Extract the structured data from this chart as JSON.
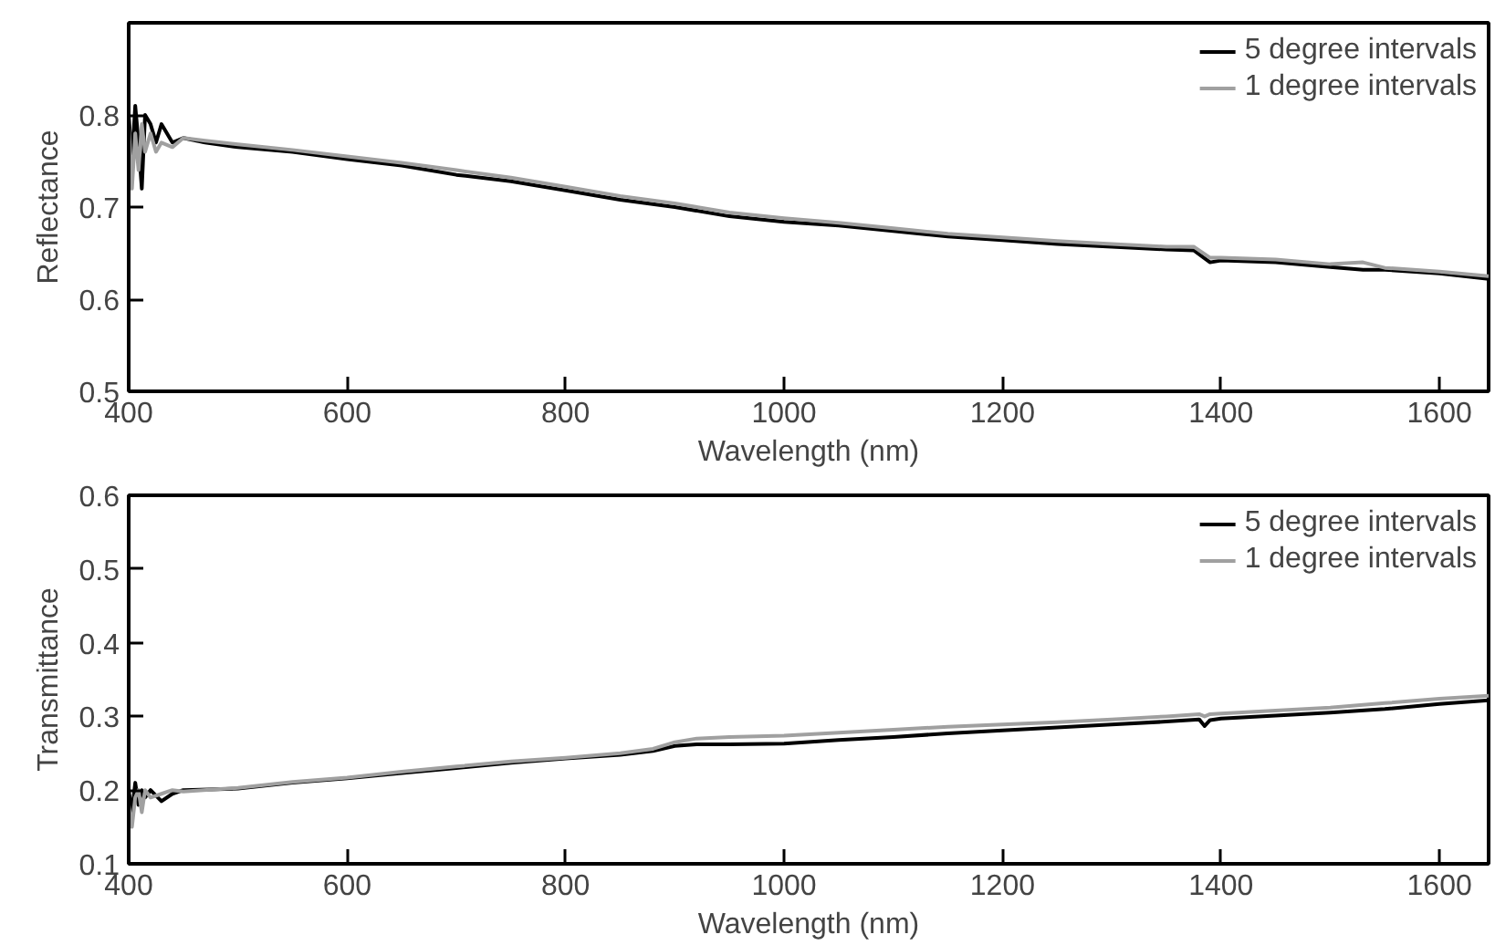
{
  "chart_data": [
    {
      "type": "line",
      "xlabel": "Wavelength (nm)",
      "ylabel": "Reflectance",
      "xlim": [
        400,
        1645
      ],
      "xticks": [
        400,
        600,
        800,
        1000,
        1200,
        1400,
        1600
      ],
      "ylim": [
        0.5,
        0.9
      ],
      "yticks": [
        0.5,
        0.6,
        0.7,
        0.8
      ],
      "legend": "top right",
      "grid": false,
      "series": [
        {
          "name": "5 degree intervals",
          "color": "#000000",
          "x": [
            400,
            403,
            406,
            409,
            412,
            415,
            420,
            425,
            430,
            440,
            450,
            470,
            500,
            550,
            600,
            650,
            700,
            750,
            800,
            850,
            900,
            950,
            1000,
            1050,
            1100,
            1150,
            1200,
            1250,
            1300,
            1350,
            1375,
            1390,
            1400,
            1450,
            1500,
            1530,
            1550,
            1600,
            1645
          ],
          "values": [
            0.8,
            0.75,
            0.81,
            0.77,
            0.72,
            0.8,
            0.79,
            0.77,
            0.79,
            0.77,
            0.775,
            0.77,
            0.765,
            0.76,
            0.752,
            0.745,
            0.735,
            0.728,
            0.718,
            0.708,
            0.7,
            0.69,
            0.684,
            0.68,
            0.674,
            0.668,
            0.664,
            0.66,
            0.657,
            0.654,
            0.653,
            0.64,
            0.642,
            0.64,
            0.635,
            0.632,
            0.632,
            0.628,
            0.622
          ]
        },
        {
          "name": "1 degree intervals",
          "color": "#a0a0a0",
          "x": [
            400,
            403,
            406,
            409,
            412,
            415,
            420,
            425,
            430,
            440,
            450,
            470,
            500,
            550,
            600,
            650,
            700,
            750,
            800,
            850,
            900,
            950,
            1000,
            1050,
            1100,
            1150,
            1200,
            1250,
            1300,
            1350,
            1375,
            1390,
            1400,
            1450,
            1500,
            1530,
            1550,
            1600,
            1645
          ],
          "values": [
            0.79,
            0.72,
            0.78,
            0.74,
            0.79,
            0.76,
            0.78,
            0.76,
            0.77,
            0.765,
            0.775,
            0.772,
            0.768,
            0.762,
            0.755,
            0.748,
            0.74,
            0.732,
            0.722,
            0.712,
            0.704,
            0.694,
            0.688,
            0.683,
            0.677,
            0.671,
            0.667,
            0.663,
            0.66,
            0.657,
            0.657,
            0.645,
            0.645,
            0.643,
            0.638,
            0.64,
            0.634,
            0.63,
            0.625
          ]
        }
      ]
    },
    {
      "type": "line",
      "xlabel": "Wavelength (nm)",
      "ylabel": "Transmittance",
      "xlim": [
        400,
        1645
      ],
      "xticks": [
        400,
        600,
        800,
        1000,
        1200,
        1400,
        1600
      ],
      "ylim": [
        0.1,
        0.6
      ],
      "yticks": [
        0.1,
        0.2,
        0.3,
        0.4,
        0.5,
        0.6
      ],
      "legend": "top right",
      "grid": false,
      "series": [
        {
          "name": "5 degree intervals",
          "color": "#000000",
          "x": [
            400,
            403,
            406,
            409,
            412,
            415,
            420,
            430,
            440,
            450,
            500,
            550,
            600,
            650,
            700,
            750,
            800,
            850,
            880,
            900,
            920,
            950,
            1000,
            1050,
            1100,
            1150,
            1200,
            1250,
            1300,
            1350,
            1380,
            1385,
            1390,
            1400,
            1450,
            1500,
            1550,
            1600,
            1645
          ],
          "values": [
            0.2,
            0.17,
            0.21,
            0.18,
            0.2,
            0.19,
            0.2,
            0.185,
            0.195,
            0.2,
            0.202,
            0.21,
            0.216,
            0.223,
            0.23,
            0.237,
            0.243,
            0.248,
            0.253,
            0.26,
            0.262,
            0.262,
            0.263,
            0.268,
            0.272,
            0.277,
            0.281,
            0.285,
            0.289,
            0.293,
            0.296,
            0.287,
            0.295,
            0.297,
            0.301,
            0.305,
            0.31,
            0.317,
            0.322
          ]
        },
        {
          "name": "1 degree intervals",
          "color": "#a0a0a0",
          "x": [
            400,
            403,
            406,
            409,
            412,
            415,
            420,
            430,
            440,
            450,
            500,
            550,
            600,
            650,
            700,
            750,
            800,
            850,
            880,
            900,
            920,
            950,
            1000,
            1050,
            1100,
            1150,
            1200,
            1250,
            1300,
            1350,
            1380,
            1385,
            1390,
            1400,
            1450,
            1500,
            1550,
            1600,
            1645
          ],
          "values": [
            0.18,
            0.15,
            0.19,
            0.2,
            0.17,
            0.2,
            0.19,
            0.195,
            0.2,
            0.198,
            0.203,
            0.211,
            0.217,
            0.225,
            0.232,
            0.239,
            0.244,
            0.25,
            0.256,
            0.265,
            0.27,
            0.272,
            0.274,
            0.278,
            0.282,
            0.286,
            0.289,
            0.292,
            0.296,
            0.3,
            0.303,
            0.3,
            0.303,
            0.304,
            0.308,
            0.312,
            0.318,
            0.324,
            0.328
          ]
        }
      ]
    }
  ]
}
